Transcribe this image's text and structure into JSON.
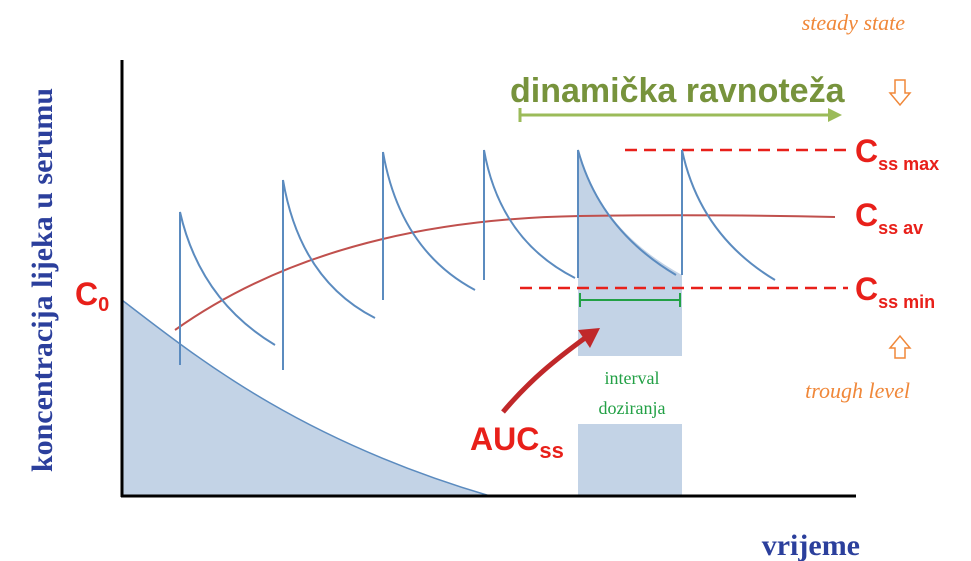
{
  "axis_labels": {
    "y": "koncentracija lijeka u serumu",
    "x": "vrijeme"
  },
  "phase_label": "dinamička ravnoteža",
  "annotations": {
    "steady_state": "steady state",
    "trough_level": "trough level"
  },
  "levels": {
    "c0": {
      "main": "C",
      "sub": "0"
    },
    "css_max": {
      "main": "C",
      "sub": "ss max"
    },
    "css_av": {
      "main": "C",
      "sub": "ss av"
    },
    "css_min": {
      "main": "C",
      "sub": "ss min"
    }
  },
  "auc": {
    "main": "AUC",
    "sub": "ss"
  },
  "interval": {
    "line1": "interval",
    "line2": "doziranja"
  }
}
